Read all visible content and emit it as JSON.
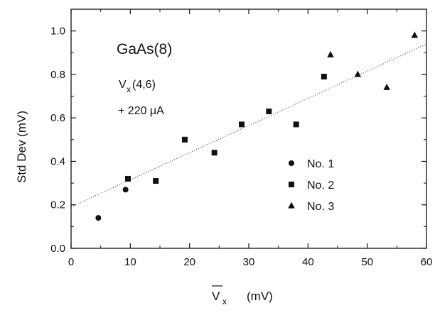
{
  "chart_data": {
    "type": "scatter",
    "xlabel_main": "V",
    "xlabel_sub": "x",
    "xlabel_unit": "(mV)",
    "ylabel": "Std Dev   (mV)",
    "xlim": [
      0,
      60
    ],
    "ylim": [
      0.0,
      1.1
    ],
    "xticks": [
      0,
      10,
      20,
      30,
      40,
      50,
      60
    ],
    "yticks": [
      "0.0",
      "0.2",
      "0.4",
      "0.6",
      "0.8",
      "1.0"
    ],
    "grid": false,
    "legend_position": "right",
    "series": [
      {
        "name": "No. 1",
        "marker": "circle",
        "points": [
          [
            4.6,
            0.14
          ],
          [
            9.2,
            0.27
          ]
        ]
      },
      {
        "name": "No. 2",
        "marker": "square",
        "points": [
          [
            9.6,
            0.32
          ],
          [
            14.3,
            0.31
          ],
          [
            19.2,
            0.5
          ],
          [
            24.2,
            0.44
          ],
          [
            28.8,
            0.57
          ],
          [
            33.4,
            0.63
          ],
          [
            38.0,
            0.57
          ],
          [
            42.7,
            0.79
          ]
        ]
      },
      {
        "name": "No. 3",
        "marker": "triangle",
        "points": [
          [
            43.8,
            0.89
          ],
          [
            48.4,
            0.8
          ],
          [
            53.3,
            0.74
          ],
          [
            58.0,
            0.98
          ]
        ]
      }
    ],
    "fit_line": {
      "x": [
        0,
        60
      ],
      "y": [
        0.19,
        0.94
      ],
      "style": "dotted"
    },
    "annotations": {
      "sample": "GaAs(8)",
      "voltage_main": "V",
      "voltage_sub": "x",
      "voltage_args": " (4,6)",
      "current": "+ 220 μA"
    }
  }
}
